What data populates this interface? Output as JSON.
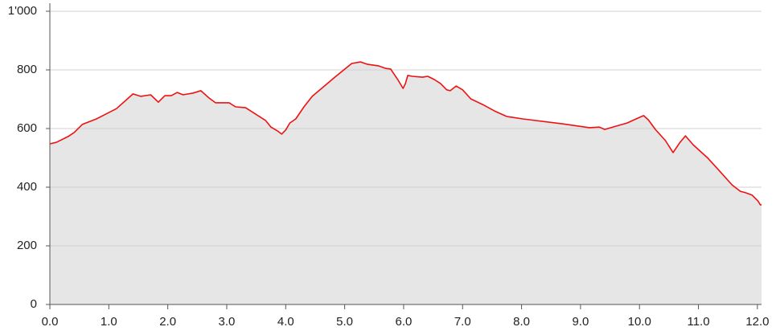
{
  "chart_data": {
    "type": "area",
    "x": [
      0,
      0.11,
      0.31,
      0.41,
      0.55,
      0.79,
      1.13,
      1.41,
      1.54,
      1.71,
      1.84,
      1.95,
      2.06,
      2.16,
      2.26,
      2.43,
      2.56,
      2.7,
      2.81,
      3.04,
      3.15,
      3.32,
      3.49,
      3.66,
      3.75,
      3.86,
      3.93,
      4.0,
      4.07,
      4.17,
      4.31,
      4.45,
      4.61,
      4.82,
      5.12,
      5.27,
      5.39,
      5.57,
      5.7,
      5.78,
      5.91,
      5.99,
      6.03,
      6.07,
      6.15,
      6.32,
      6.41,
      6.52,
      6.63,
      6.73,
      6.79,
      6.89,
      7.0,
      7.14,
      7.34,
      7.54,
      7.75,
      8.02,
      8.7,
      9.15,
      9.32,
      9.41,
      9.79,
      10.0,
      10.07,
      10.15,
      10.27,
      10.44,
      10.57,
      10.68,
      10.78,
      10.91,
      11.16,
      11.36,
      11.57,
      11.71,
      11.8,
      11.91,
      12.01,
      12.05,
      12.07
    ],
    "values": [
      548,
      553,
      573,
      586,
      614,
      633,
      668,
      718,
      710,
      715,
      690,
      712,
      712,
      723,
      715,
      721,
      729,
      704,
      688,
      688,
      674,
      671,
      649,
      627,
      605,
      592,
      581,
      595,
      619,
      633,
      674,
      710,
      737,
      773,
      822,
      827,
      819,
      814,
      805,
      803,
      764,
      737,
      753,
      781,
      778,
      775,
      778,
      767,
      753,
      732,
      729,
      745,
      732,
      701,
      682,
      660,
      641,
      633,
      616,
      603,
      605,
      597,
      619,
      638,
      644,
      630,
      597,
      559,
      518,
      551,
      575,
      545,
      499,
      455,
      408,
      386,
      381,
      373,
      353,
      340,
      340
    ],
    "line_color": "#ee1111",
    "fill_color": "#e6e6e6",
    "xlim": [
      0,
      12.07
    ],
    "ylim": [
      0,
      1000
    ],
    "xticks": [
      {
        "value": 0,
        "label": "0.0"
      },
      {
        "value": 1,
        "label": "1.0"
      },
      {
        "value": 2,
        "label": "2.0"
      },
      {
        "value": 3,
        "label": "3.0"
      },
      {
        "value": 4,
        "label": "4.0"
      },
      {
        "value": 5,
        "label": "5.0"
      },
      {
        "value": 6,
        "label": "6.0"
      },
      {
        "value": 7,
        "label": "7.0"
      },
      {
        "value": 8,
        "label": "8.0"
      },
      {
        "value": 9,
        "label": "9.0"
      },
      {
        "value": 10,
        "label": "10.0"
      },
      {
        "value": 11,
        "label": "11.0"
      },
      {
        "value": 12,
        "label": "12.0"
      }
    ],
    "yticks": [
      0,
      200,
      400,
      600,
      800,
      {
        "value": 1000,
        "label": "1'000"
      }
    ],
    "grid": true
  }
}
